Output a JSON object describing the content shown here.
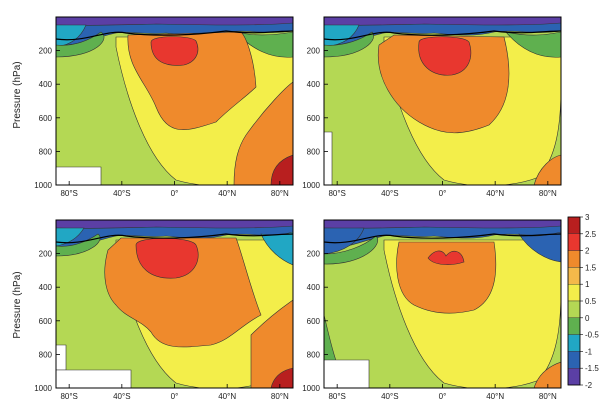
{
  "chart_data": {
    "type": "heatmap",
    "ylabel": "Pressure (hPa)",
    "x_ticks": [
      "80°S",
      "40°S",
      "0°",
      "40°N",
      "80°N"
    ],
    "x_tick_values": [
      -80,
      -40,
      0,
      40,
      80
    ],
    "xlim": [
      -90,
      90
    ],
    "y_ticks": [
      "200",
      "400",
      "600",
      "800",
      "1000"
    ],
    "y_tick_values": [
      200,
      400,
      600,
      800,
      1000
    ],
    "ylim": [
      0,
      1000
    ],
    "colorbar": {
      "ticks": [
        "3",
        "2.5",
        "2",
        "1.5",
        "1",
        "0.5",
        "0",
        "-0.5",
        "-1",
        "-1.5",
        "-2"
      ],
      "levels": [
        3,
        2.5,
        2,
        1.5,
        1,
        0.5,
        0,
        -0.5,
        -1,
        -1.5,
        -2
      ],
      "colors": [
        "#b81f1f",
        "#e8372f",
        "#ef8a2c",
        "#f4b94a",
        "#f3ee4a",
        "#b4d854",
        "#5fb04f",
        "#21a7c4",
        "#2b63b2",
        "#5b3fa5"
      ]
    },
    "panels": [
      {
        "position": "top-left"
      },
      {
        "position": "top-right"
      },
      {
        "position": "bottom-left"
      },
      {
        "position": "bottom-right"
      }
    ]
  }
}
